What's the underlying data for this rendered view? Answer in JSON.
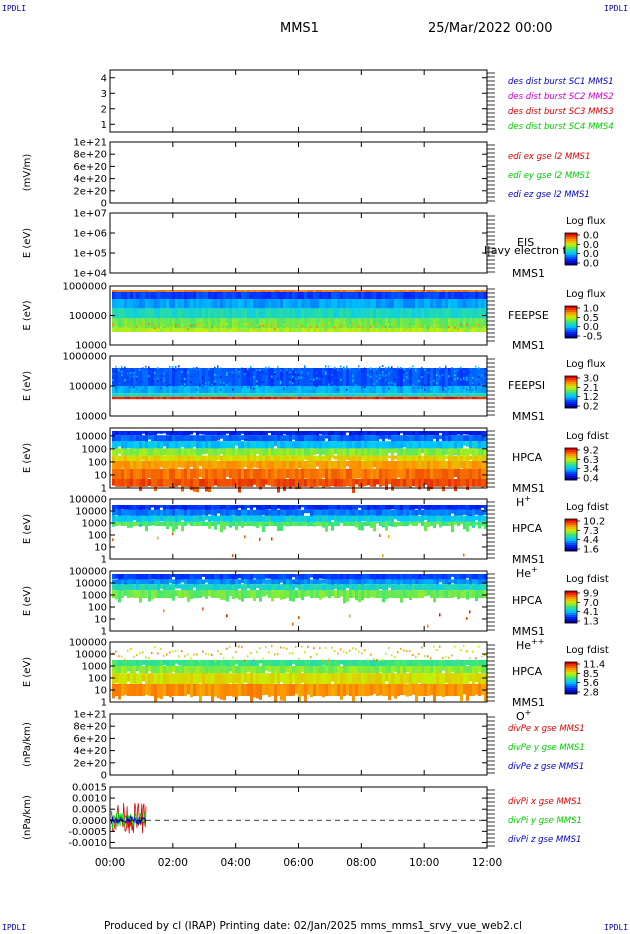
{
  "corner_label": "IPDLI",
  "header": {
    "spacecraft": "MMS1",
    "datetime": "25/Mar/2022 00:00"
  },
  "footer": {
    "text": "Produced by cl (IRAP)   Printing date: 02/Jan/2025   mms_mms1_srvy_vue_web2.cl"
  },
  "colors": {
    "mms1": "#0000cc",
    "mms2": "#cc00cc",
    "mms3": "#cc0000",
    "mms4": "#00cc00",
    "x_comp": "#dd0000",
    "y_comp": "#00cc00",
    "z_comp": "#0000cc"
  },
  "chart_data": [
    {
      "id": "des-dist",
      "type": "line",
      "ylabel": "",
      "yticks": [
        "1",
        "2",
        "3",
        "4"
      ],
      "ylim": [
        0.5,
        4.5
      ],
      "legend": [
        {
          "text": "des dist burst SC1 MMS1",
          "color": "mms1"
        },
        {
          "text": "des dist burst SC2 MMS2",
          "color": "mms2"
        },
        {
          "text": "des dist burst SC3 MMS3",
          "color": "mms3"
        },
        {
          "text": "des dist burst SC4 MMS4",
          "color": "mms4"
        }
      ]
    },
    {
      "id": "edi-e",
      "type": "line",
      "ylabel": "(mV/m)",
      "yticks": [
        "0",
        "2e+20",
        "4e+20",
        "6e+20",
        "8e+20",
        "1e+21"
      ],
      "ylim": [
        0,
        1e+21
      ],
      "zero_line": true,
      "legend": [
        {
          "text": "edi ex gse l2 MMS1",
          "color": "x_comp"
        },
        {
          "text": "edi ey gse l2 MMS1",
          "color": "y_comp"
        },
        {
          "text": "edi ez gse l2 MMS1",
          "color": "z_comp"
        }
      ]
    },
    {
      "id": "eis",
      "type": "heatmap",
      "ylabel": "E (eV)",
      "yticks": [
        "1e+04",
        "1e+05",
        "1e+06",
        "1e+07"
      ],
      "ylim": [
        10000,
        10000000
      ],
      "log": true,
      "labels": [
        "EIS",
        "MMS1"
      ],
      "extra_label": "l|avy electron to",
      "colorbar": {
        "title": "Log flux",
        "ticks": [
          "0.0",
          "0.0",
          "0.0",
          "0.0"
        ]
      }
    },
    {
      "id": "feeps-e",
      "type": "heatmap",
      "ylabel": "E (eV)",
      "yticks": [
        "10000",
        "100000",
        "1000000"
      ],
      "ylim": [
        10000,
        1000000
      ],
      "log": true,
      "labels": [
        "FEEPSE",
        "MMS1"
      ],
      "colorbar": {
        "title": "Log flux",
        "ticks": [
          "1.0",
          "0.5",
          "0.0",
          "-0.5"
        ]
      }
    },
    {
      "id": "feeps-i",
      "type": "heatmap",
      "ylabel": "E (eV)",
      "yticks": [
        "10000",
        "100000",
        "1000000"
      ],
      "ylim": [
        10000,
        1000000
      ],
      "log": true,
      "labels": [
        "FEEPSI",
        "MMS1"
      ],
      "colorbar": {
        "title": "Log flux",
        "ticks": [
          "3.0",
          "2.1",
          "1.2",
          "0.2"
        ]
      }
    },
    {
      "id": "hpca-h",
      "type": "heatmap",
      "ylabel": "E (eV)",
      "yticks": [
        "1",
        "10",
        "100",
        "1000",
        "10000"
      ],
      "ylim": [
        1,
        40000
      ],
      "log": true,
      "labels": [
        "HPCA",
        "MMS1"
      ],
      "species": {
        "base": "H",
        "sup": "+"
      },
      "colorbar": {
        "title": "Log fdist",
        "ticks": [
          "9.2",
          "6.3",
          "3.4",
          "0.4"
        ]
      }
    },
    {
      "id": "hpca-he1",
      "type": "heatmap",
      "ylabel": "E (eV)",
      "yticks": [
        "1",
        "10",
        "100",
        "1000",
        "10000",
        "100000"
      ],
      "ylim": [
        1,
        100000
      ],
      "log": true,
      "labels": [
        "HPCA",
        "MMS1"
      ],
      "species": {
        "base": "He",
        "sup": "+"
      },
      "colorbar": {
        "title": "Log fdist",
        "ticks": [
          "10.2",
          "7.3",
          "4.4",
          "1.6"
        ]
      }
    },
    {
      "id": "hpca-he2",
      "type": "heatmap",
      "ylabel": "E (eV)",
      "yticks": [
        "1",
        "10",
        "100",
        "1000",
        "10000",
        "100000"
      ],
      "ylim": [
        1,
        100000
      ],
      "log": true,
      "labels": [
        "HPCA",
        "MMS1"
      ],
      "species": {
        "base": "He",
        "sup": "++"
      },
      "colorbar": {
        "title": "Log fdist",
        "ticks": [
          "9.9",
          "7.0",
          "4.1",
          "1.3"
        ]
      }
    },
    {
      "id": "hpca-o",
      "type": "heatmap",
      "ylabel": "E (eV)",
      "yticks": [
        "1",
        "10",
        "100",
        "1000",
        "10000",
        "100000"
      ],
      "ylim": [
        1,
        100000
      ],
      "log": true,
      "labels": [
        "HPCA",
        "MMS1"
      ],
      "species": {
        "base": "O",
        "sup": "+"
      },
      "colorbar": {
        "title": "Log fdist",
        "ticks": [
          "11.4",
          "8.5",
          "5.6",
          "2.8"
        ]
      }
    },
    {
      "id": "divpe",
      "type": "line",
      "ylabel": "(nPa/km)",
      "yticks": [
        "0",
        "2e+20",
        "4e+20",
        "6e+20",
        "8e+20",
        "1e+21"
      ],
      "ylim": [
        0,
        1e+21
      ],
      "zero_line": true,
      "legend": [
        {
          "text": "divPe x gse MMS1",
          "color": "x_comp"
        },
        {
          "text": "divPe y gse MMS1",
          "color": "y_comp"
        },
        {
          "text": "divPe z gse MMS1",
          "color": "z_comp"
        }
      ]
    },
    {
      "id": "divpi",
      "type": "line",
      "ylabel": "(nPa/km)",
      "yticks": [
        "-0.0010",
        "-0.0005",
        "0.0000",
        "0.0005",
        "0.0010",
        "0.0015"
      ],
      "ylim": [
        -0.00125,
        0.0015
      ],
      "zero_line": true,
      "data_range": [
        "00:00",
        "01:10"
      ],
      "legend": [
        {
          "text": "divPi x gse MMS1",
          "color": "x_comp"
        },
        {
          "text": "divPi y gse MMS1",
          "color": "y_comp"
        },
        {
          "text": "divPi z gse MMS1",
          "color": "z_comp"
        }
      ]
    }
  ],
  "x_axis": {
    "ticks": [
      "00:00",
      "02:00",
      "04:00",
      "06:00",
      "08:00",
      "10:00",
      "12:00"
    ],
    "range": [
      "00:00",
      "12:00"
    ]
  }
}
